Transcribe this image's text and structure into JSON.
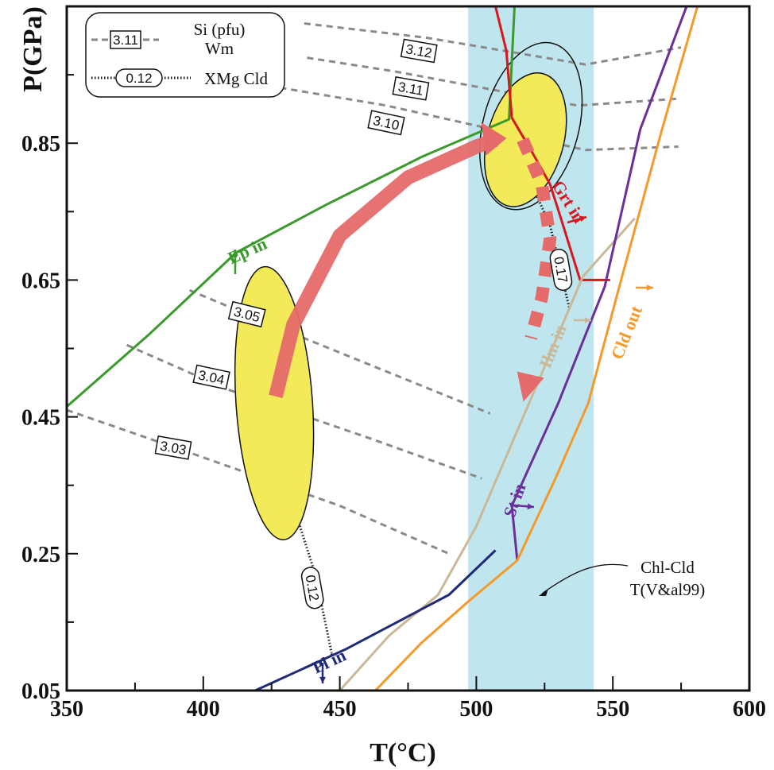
{
  "chart_data": {
    "type": "line",
    "title": "",
    "xlabel": "T(°C)",
    "ylabel": "P(GPa)",
    "xlim": [
      350,
      600
    ],
    "ylim": [
      0.05,
      1.05
    ],
    "x_ticks": [
      "350",
      "400",
      "450",
      "500",
      "550",
      "600"
    ],
    "y_ticks": [
      "0.05",
      "0.25",
      "0.45",
      "0.65",
      "0.85"
    ],
    "x_minor_tick_values": [
      375,
      425,
      475,
      525,
      575
    ],
    "y_tick_values": [
      0.05,
      0.25,
      0.45,
      0.65,
      0.85
    ],
    "y_minor_tick_values": [
      0.15,
      0.35,
      0.55,
      0.75,
      0.95
    ],
    "grid": false,
    "shaded_band": {
      "x_range": [
        497,
        543
      ],
      "color": "#bfe6ee"
    },
    "legend": {
      "placement": "top-left",
      "entries": [
        {
          "symbol": "3.11",
          "label_line1": "Si (pfu)",
          "label_line2": "Wm",
          "style": "dashed"
        },
        {
          "symbol": "0.12",
          "label_line1": "XMg Cld",
          "label_line2": "",
          "style": "dotted"
        }
      ]
    },
    "reaction_lines": [
      {
        "name": "Ep in",
        "color": "#3a9a2c",
        "points": [
          [
            350,
            0.465
          ],
          [
            380,
            0.57
          ],
          [
            412,
            0.69
          ],
          [
            445,
            0.76
          ],
          [
            480,
            0.83
          ],
          [
            512,
            0.885
          ],
          [
            513,
            0.97
          ],
          [
            514,
            1.05
          ]
        ]
      },
      {
        "name": "Grt in",
        "color": "#d9151e",
        "points": [
          [
            507,
            1.05
          ],
          [
            511,
            0.985
          ],
          [
            513,
            0.887
          ],
          [
            520,
            0.84
          ],
          [
            527,
            0.79
          ],
          [
            531,
            0.74
          ],
          [
            538,
            0.65
          ],
          [
            549,
            0.65
          ]
        ]
      },
      {
        "name": "Ilm in",
        "color": "#c9b89a",
        "points": [
          [
            450,
            0.05
          ],
          [
            468,
            0.13
          ],
          [
            486,
            0.19
          ],
          [
            500,
            0.29
          ],
          [
            522,
            0.495
          ],
          [
            539,
            0.655
          ],
          [
            558,
            0.74
          ]
        ]
      },
      {
        "name": "St in",
        "color": "#6a2f9b",
        "points": [
          [
            515,
            0.24
          ],
          [
            513,
            0.32
          ],
          [
            530,
            0.47
          ],
          [
            547,
            0.64
          ],
          [
            560,
            0.87
          ],
          [
            577,
            1.05
          ]
        ]
      },
      {
        "name": "Cld out",
        "color": "#f39a2b",
        "points": [
          [
            463,
            0.05
          ],
          [
            480,
            0.12
          ],
          [
            497,
            0.18
          ],
          [
            515,
            0.24
          ],
          [
            529,
            0.36
          ],
          [
            541,
            0.47
          ],
          [
            552,
            0.635
          ],
          [
            568,
            0.87
          ],
          [
            581,
            1.05
          ]
        ]
      },
      {
        "name": "Pl in",
        "color": "#1f2a78",
        "points": [
          [
            419,
            0.05
          ],
          [
            452,
            0.11
          ],
          [
            490,
            0.19
          ],
          [
            507,
            0.255
          ]
        ]
      }
    ],
    "reaction_labels": [
      {
        "text": "Ep in",
        "color": "#3a9a2c",
        "x": 417,
        "y": 0.685,
        "rot": -24
      },
      {
        "text": "Grt in",
        "color": "#d9151e",
        "x": 532,
        "y": 0.76,
        "rot": 58
      },
      {
        "text": "Ilm in",
        "color": "#c9b89a",
        "x": 530,
        "y": 0.55,
        "rot": -68
      },
      {
        "text": "St in",
        "color": "#6a2f9b",
        "x": 516,
        "y": 0.325,
        "rot": -70
      },
      {
        "text": "Cld out",
        "color": "#f39a2b",
        "x": 557,
        "y": 0.57,
        "rot": -68
      },
      {
        "text": "Pl in",
        "color": "#1f2a78",
        "x": 447,
        "y": 0.085,
        "rot": -25
      }
    ],
    "si_isopleths": [
      {
        "label": "3.03",
        "points": [
          [
            350,
            0.46
          ],
          [
            397,
            0.395
          ],
          [
            450,
            0.32
          ],
          [
            490,
            0.25
          ]
        ],
        "lx": 389,
        "ly": 0.405,
        "rot": 10
      },
      {
        "label": "3.04",
        "points": [
          [
            372,
            0.555
          ],
          [
            409,
            0.49
          ],
          [
            460,
            0.42
          ],
          [
            502,
            0.36
          ]
        ],
        "lx": 403,
        "ly": 0.508,
        "rot": 12
      },
      {
        "label": "3.05",
        "points": [
          [
            395,
            0.635
          ],
          [
            437,
            0.565
          ],
          [
            505,
            0.455
          ]
        ],
        "lx": 416,
        "ly": 0.6,
        "rot": 14
      },
      {
        "label": "3.10",
        "points": [
          [
            400,
            0.95
          ],
          [
            467,
            0.905
          ],
          [
            540,
            0.84
          ],
          [
            574,
            0.845
          ]
        ],
        "lx": 467,
        "ly": 0.88,
        "rot": 12
      },
      {
        "label": "3.11",
        "points": [
          [
            438,
            0.975
          ],
          [
            470,
            0.955
          ],
          [
            537,
            0.905
          ],
          [
            574,
            0.915
          ]
        ],
        "lx": 476,
        "ly": 0.93,
        "rot": 10
      },
      {
        "label": "3.12",
        "points": [
          [
            437,
            1.025
          ],
          [
            482,
            1.004
          ],
          [
            540,
            0.965
          ],
          [
            575,
            0.99
          ]
        ],
        "lx": 479,
        "ly": 0.985,
        "rot": 10
      }
    ],
    "xmg_isopleths": [
      {
        "label": "0.12",
        "points": [
          [
            417,
            0.64
          ],
          [
            425,
            0.43
          ],
          [
            433,
            0.32
          ],
          [
            441,
            0.22
          ],
          [
            447,
            0.105
          ]
        ],
        "lx": 440,
        "ly": 0.2,
        "rot": 80
      },
      {
        "label": "0.17",
        "points": [
          [
            518,
            0.81
          ],
          [
            527,
            0.73
          ],
          [
            534,
            0.61
          ]
        ],
        "lx": 531,
        "ly": 0.665,
        "rot": 80
      }
    ],
    "pt_ellipses": [
      {
        "cx": 426,
        "cy": 0.47,
        "rx": 14,
        "ry": 0.2,
        "rot": -4
      },
      {
        "cx": 518,
        "cy": 0.855,
        "rx": 14,
        "ry": 0.1,
        "rot": 15
      }
    ],
    "pt_path": {
      "color": "#e56a6a",
      "prograde": [
        [
          426.5,
          0.48
        ],
        [
          433,
          0.585
        ],
        [
          450,
          0.715
        ],
        [
          475,
          0.8
        ],
        [
          500,
          0.845
        ],
        [
          507,
          0.855
        ]
      ],
      "retrograde": [
        [
          517,
          0.855
        ],
        [
          524,
          0.79
        ],
        [
          527,
          0.71
        ],
        [
          524,
          0.625
        ],
        [
          520,
          0.565
        ]
      ],
      "retrograde_arrow_tip": [
        519,
        0.5
      ]
    },
    "annotations": [
      {
        "text_line1": "Chl-Cld",
        "text_line2": "T(V&al99)"
      }
    ]
  }
}
